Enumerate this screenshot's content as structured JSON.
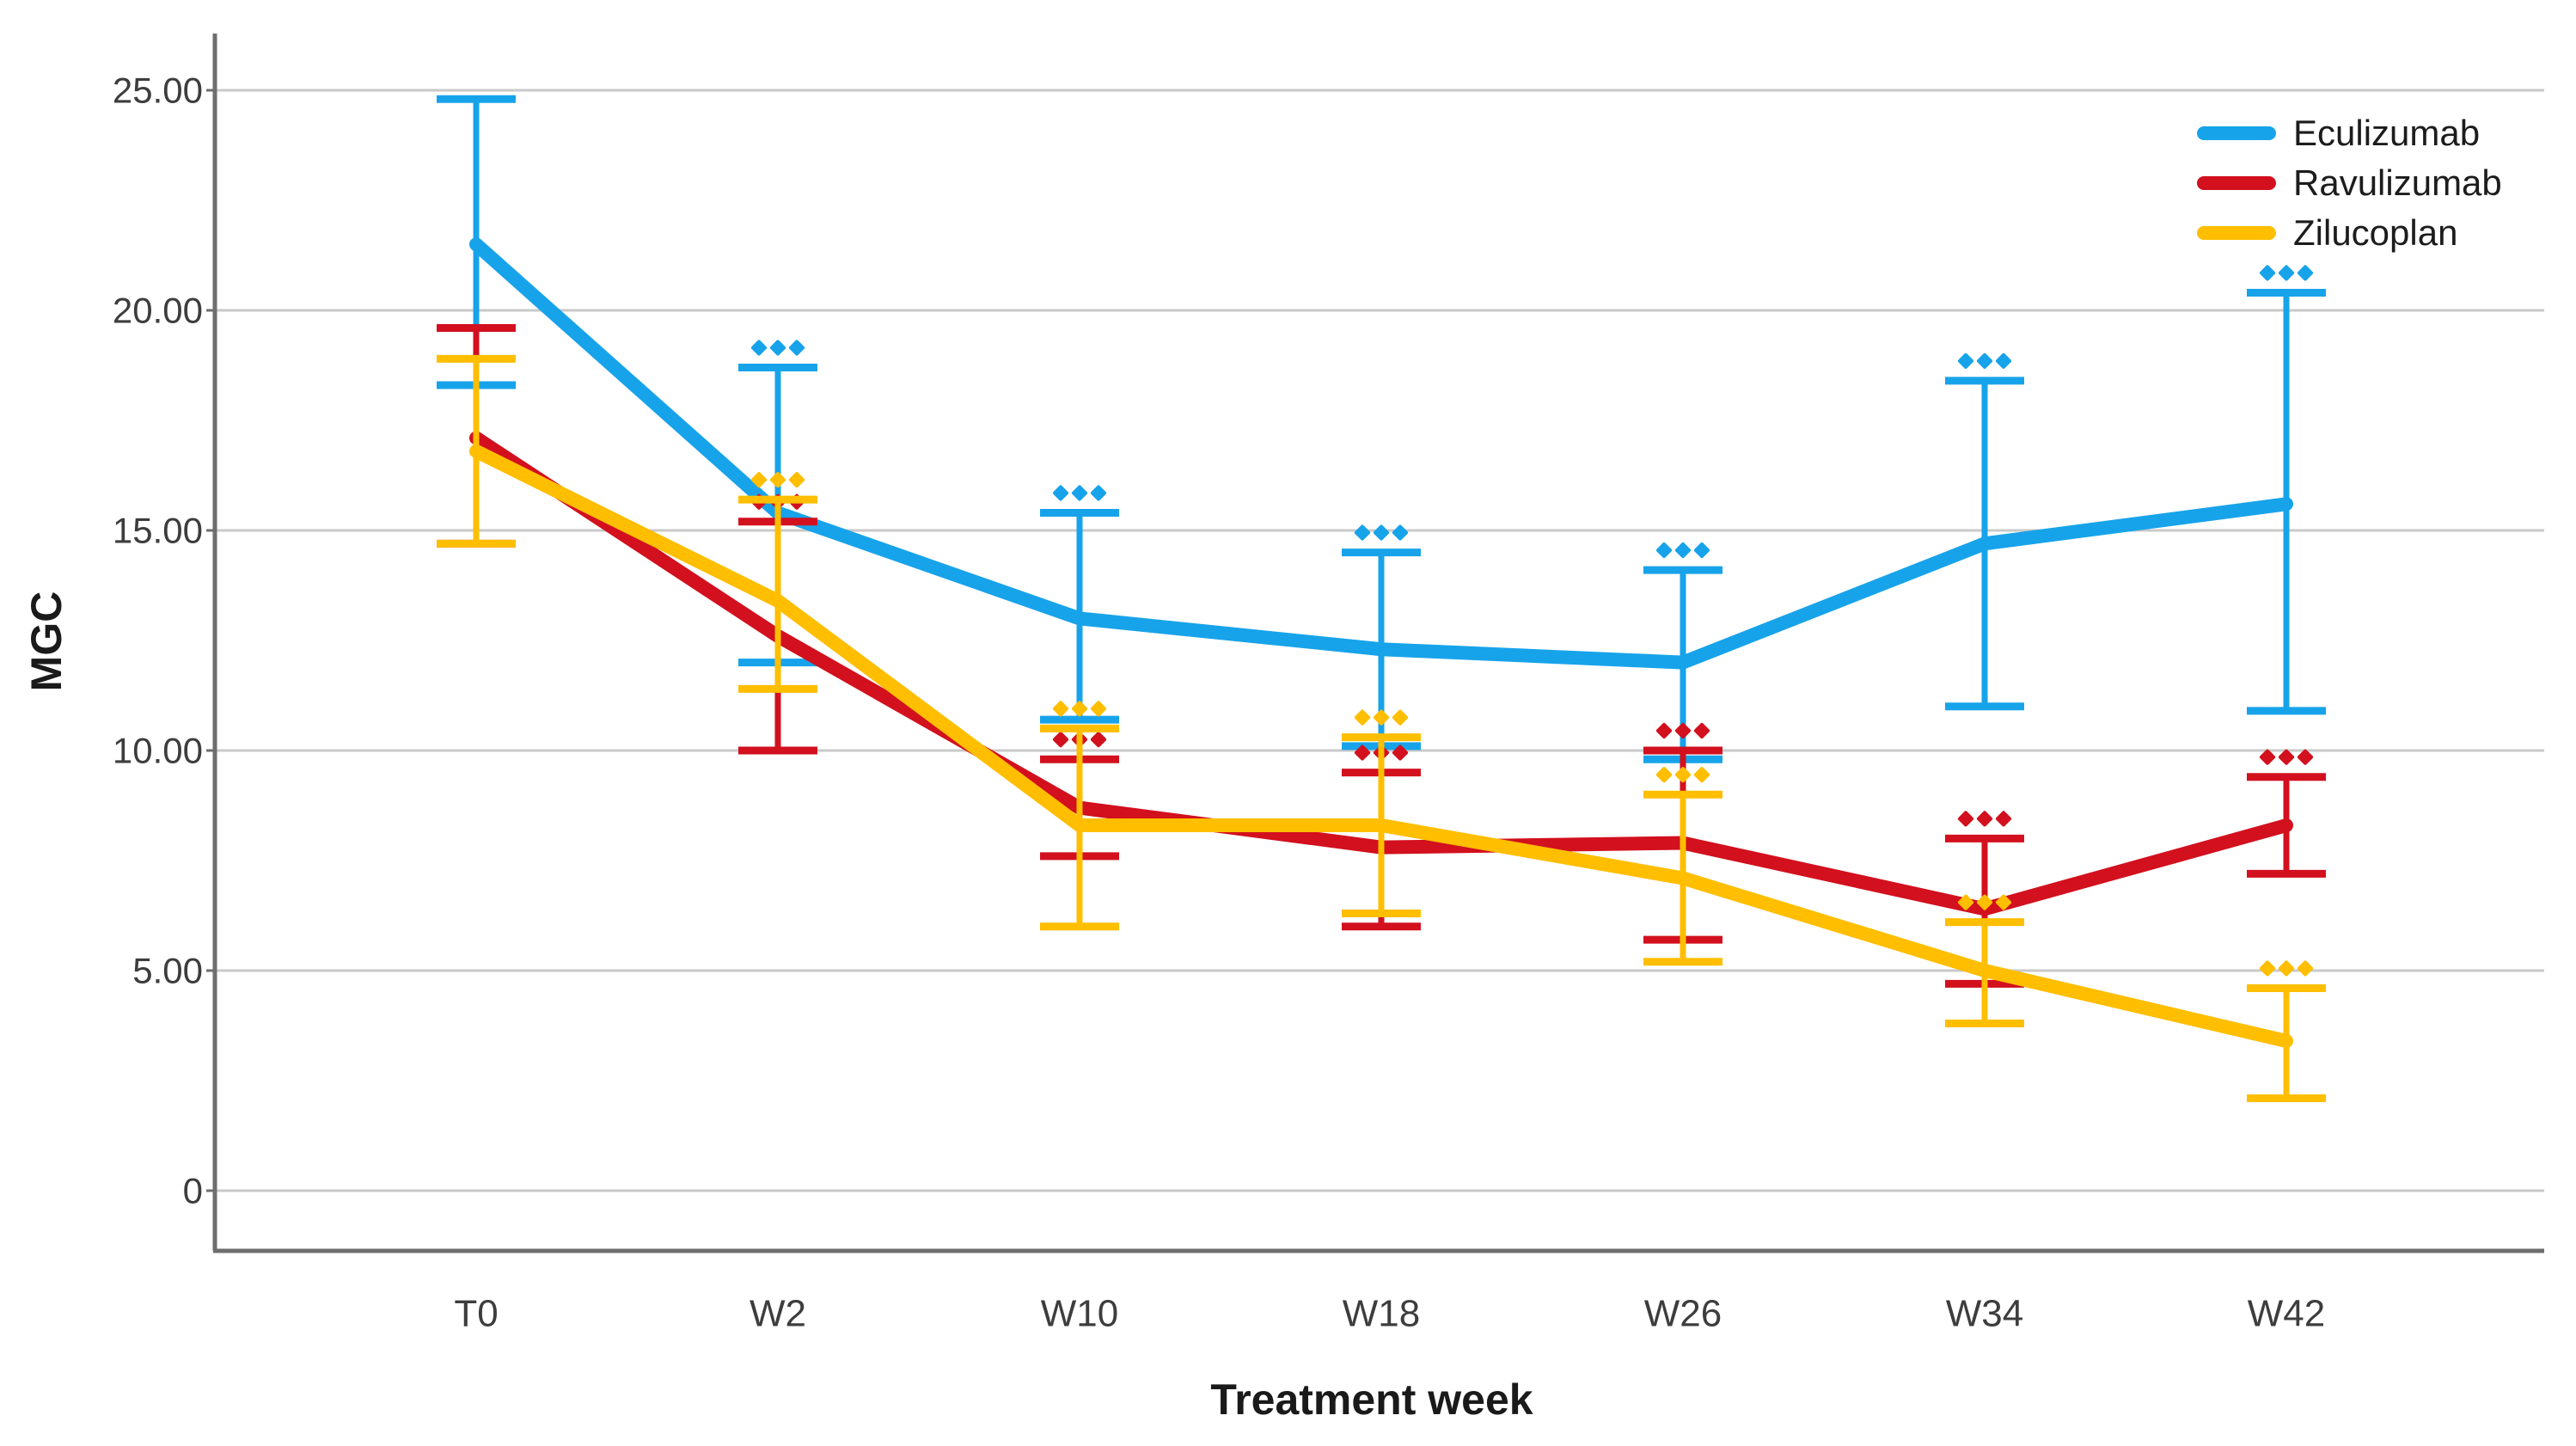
{
  "figure": {
    "y_axis_title": "MGC",
    "x_axis_title": "Treatment week",
    "colors": {
      "background": "#ffffff",
      "gridline": "#c9c9c9",
      "axis": "#6e6e6e",
      "tick_label": "#3d3d3d",
      "axis_title": "#1a1a1a"
    }
  },
  "legend": {
    "position": "top-right",
    "items": [
      {
        "label": "Eculizumab",
        "color": "#17a3ea"
      },
      {
        "label": "Ravulizumab",
        "color": "#d2101e"
      },
      {
        "label": "Zilucoplan",
        "color": "#ffbe00"
      }
    ]
  },
  "chart_data": {
    "type": "line",
    "title": "",
    "xlabel": "Treatment week",
    "ylabel": "MGC",
    "x_categories": [
      "T0",
      "W2",
      "W10",
      "W18",
      "W26",
      "W34",
      "W42"
    ],
    "y_ticks": [
      {
        "value": 0,
        "label": "0"
      },
      {
        "value": 5,
        "label": "5.00"
      },
      {
        "value": 10,
        "label": "10.00"
      },
      {
        "value": 15,
        "label": "15.00"
      },
      {
        "value": 20,
        "label": "20.00"
      },
      {
        "value": 25,
        "label": "25.00"
      }
    ],
    "ylim": [
      0,
      25
    ],
    "grid": "horizontal",
    "legend_position": "top-right",
    "error_bars": "confidence interval caps",
    "significance_marker": "three colored diamond dots above upper error cap",
    "series": [
      {
        "name": "Eculizumab",
        "color": "#17a3ea",
        "values": [
          21.5,
          15.4,
          13.0,
          12.3,
          12.0,
          14.7,
          15.6
        ],
        "ci_low": [
          18.3,
          12.0,
          10.7,
          10.1,
          9.8,
          11.0,
          10.9
        ],
        "ci_high": [
          24.8,
          18.7,
          15.4,
          14.5,
          14.1,
          18.4,
          20.4
        ],
        "significant": [
          false,
          true,
          true,
          true,
          true,
          true,
          true
        ]
      },
      {
        "name": "Ravulizumab",
        "color": "#d2101e",
        "values": [
          17.1,
          12.6,
          8.7,
          7.8,
          7.9,
          6.4,
          8.3
        ],
        "ci_low": [
          14.7,
          10.0,
          7.6,
          6.0,
          5.7,
          4.7,
          7.2
        ],
        "ci_high": [
          19.6,
          15.2,
          9.8,
          9.5,
          10.0,
          8.0,
          9.4
        ],
        "significant": [
          false,
          true,
          true,
          true,
          true,
          true,
          true
        ]
      },
      {
        "name": "Zilucoplan",
        "color": "#ffbe00",
        "values": [
          16.8,
          13.4,
          8.3,
          8.3,
          7.1,
          5.0,
          3.4
        ],
        "ci_low": [
          14.7,
          11.4,
          6.0,
          6.3,
          5.2,
          3.8,
          2.1
        ],
        "ci_high": [
          18.9,
          15.7,
          10.5,
          10.3,
          9.0,
          6.1,
          4.6
        ],
        "significant": [
          false,
          true,
          true,
          true,
          true,
          true,
          true
        ]
      }
    ]
  }
}
